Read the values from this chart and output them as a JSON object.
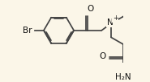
{
  "bg_color": "#fbf6e8",
  "line_color": "#444444",
  "text_color": "#111111",
  "lw": 1.25,
  "figsize": [
    1.85,
    1.02
  ],
  "dpi": 100,
  "xlim": [
    -2.8,
    5.6
  ],
  "ylim": [
    -2.8,
    2.6
  ]
}
